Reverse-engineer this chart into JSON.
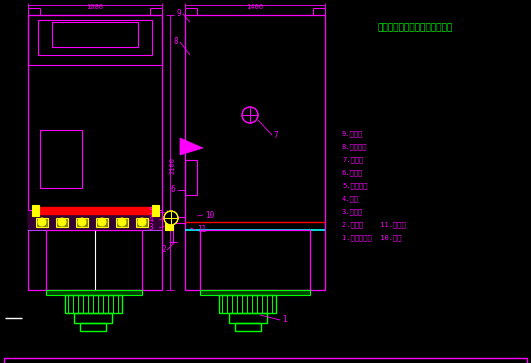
{
  "bg_color": "#000000",
  "border_color": "#ff00ff",
  "green": "#00ff00",
  "cyan": "#00ffff",
  "magenta": "#ff00ff",
  "yellow": "#ffff00",
  "red": "#ff0000",
  "white": "#ffffff",
  "company_text": "北京华康中天国际环保有限公司",
  "legend_lines": [
    "1.除尘器风机  10.检修",
    "2.气包箱    11.机控笱",
    "3.脉冲阀",
    "4.气包",
    "5.气包支架",
    "6.检修门",
    "7.排风口",
    "8.自支撑腿",
    "9.活支架"
  ],
  "dim_2100": "2100",
  "dim_1080": "1080",
  "dim_1400": "1400"
}
